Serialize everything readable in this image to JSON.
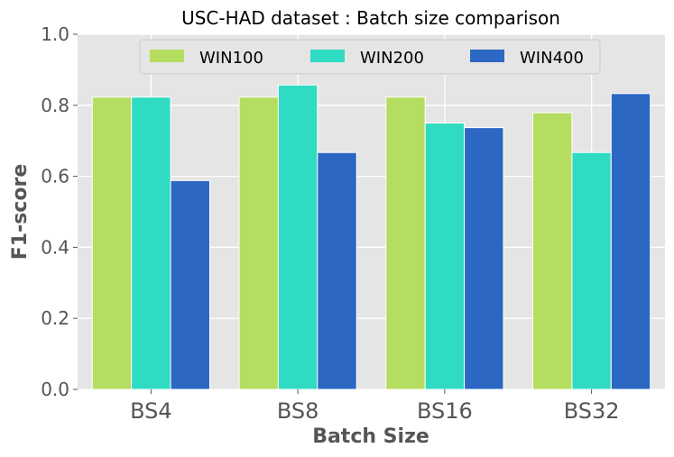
{
  "chart_data": {
    "type": "bar",
    "title": "USC-HAD dataset : Batch size comparison",
    "xlabel": "Batch Size",
    "ylabel": "F1-score",
    "ylim": [
      0.0,
      1.0
    ],
    "yticks": [
      "0.0",
      "0.2",
      "0.4",
      "0.6",
      "0.8",
      "1.0"
    ],
    "yticks_values": [
      0.0,
      0.2,
      0.4,
      0.6,
      0.8,
      1.0
    ],
    "categories": [
      "BS4",
      "BS8",
      "BS16",
      "BS32"
    ],
    "series": [
      {
        "name": "WIN100",
        "color": "#b5dd5f",
        "values": [
          0.823,
          0.823,
          0.823,
          0.779
        ]
      },
      {
        "name": "WIN200",
        "color": "#2fdbc2",
        "values": [
          0.823,
          0.857,
          0.75,
          0.667
        ]
      },
      {
        "name": "WIN400",
        "color": "#2b67c3",
        "values": [
          0.588,
          0.667,
          0.737,
          0.833
        ]
      }
    ],
    "grid": true,
    "legend_position": "top-center"
  }
}
